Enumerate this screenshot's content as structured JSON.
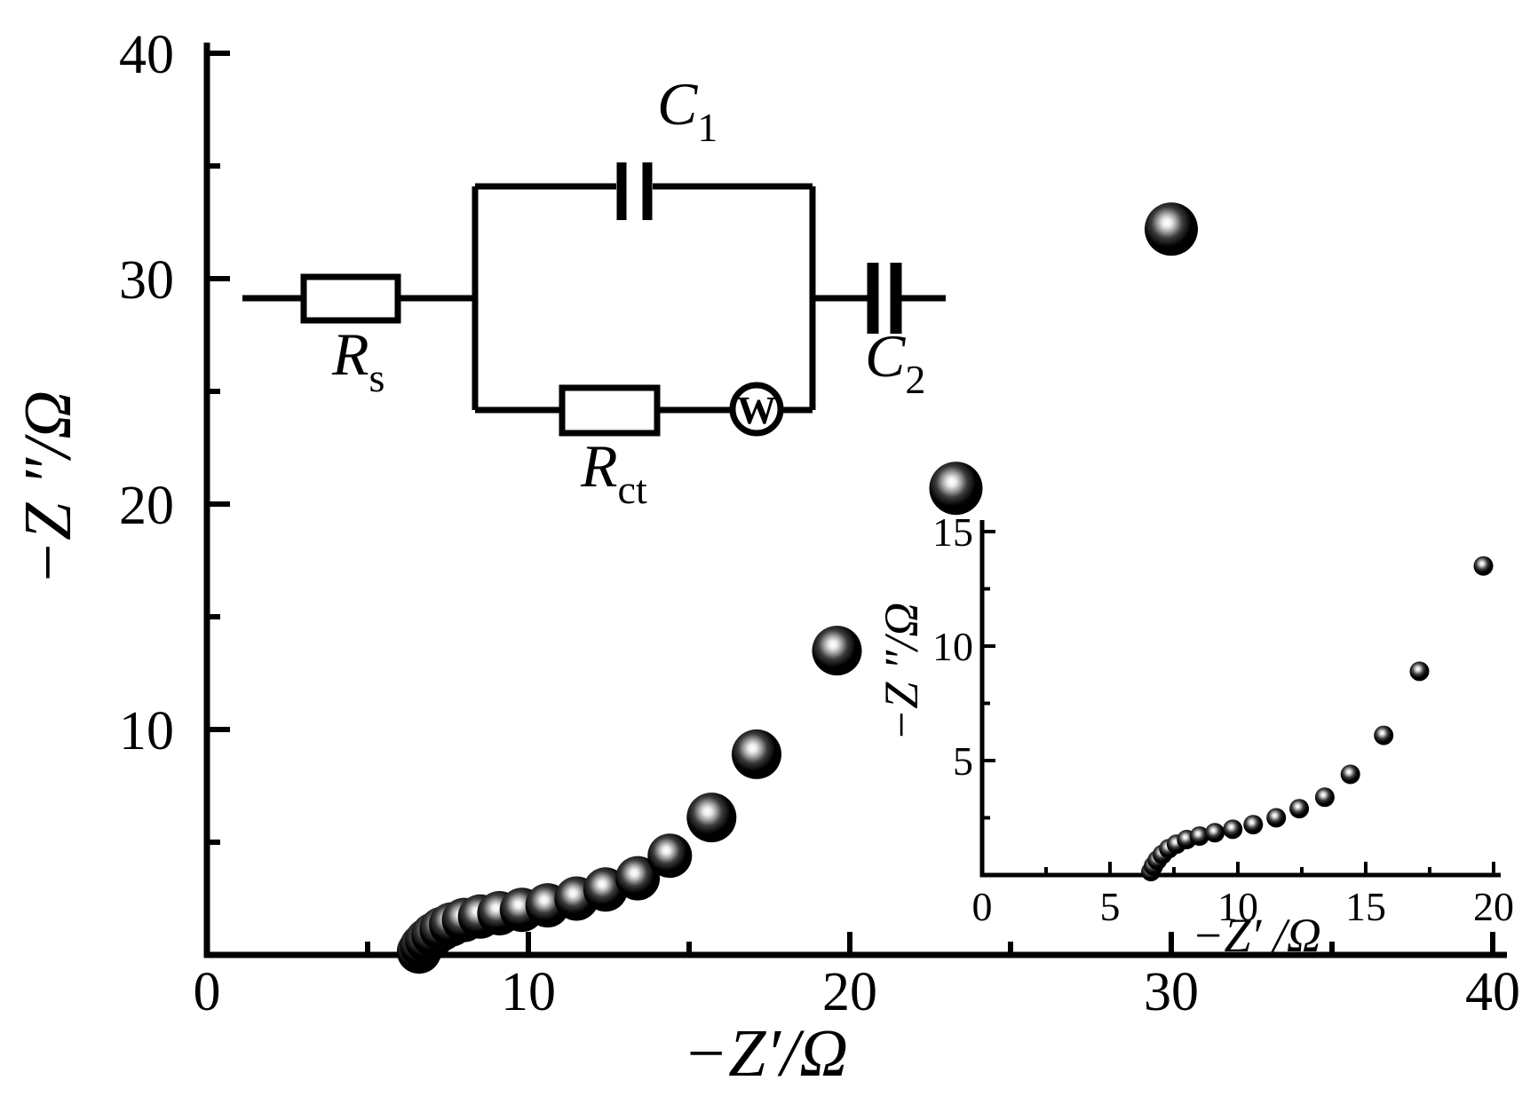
{
  "figure": {
    "description": "Nyquist plot of electrochemical impedance data with equivalent-circuit model and zoomed inset plot",
    "background": "#ffffff",
    "ink": "#000000"
  },
  "chart_data": {
    "type": "scatter",
    "title": "",
    "series": [
      {
        "name": "impedance-spectrum",
        "marker": "sphere-dot",
        "color": "#000000",
        "points": [
          [
            6.6,
            0.15
          ],
          [
            6.7,
            0.4
          ],
          [
            6.85,
            0.65
          ],
          [
            7.05,
            0.9
          ],
          [
            7.3,
            1.15
          ],
          [
            7.6,
            1.35
          ],
          [
            8.0,
            1.55
          ],
          [
            8.5,
            1.7
          ],
          [
            9.1,
            1.85
          ],
          [
            9.8,
            2.0
          ],
          [
            10.6,
            2.2
          ],
          [
            11.5,
            2.5
          ],
          [
            12.4,
            2.9
          ],
          [
            13.4,
            3.4
          ],
          [
            14.4,
            4.4
          ],
          [
            15.7,
            6.1
          ],
          [
            17.1,
            8.9
          ],
          [
            19.6,
            13.5
          ],
          [
            23.3,
            20.7
          ],
          [
            30.0,
            32.2
          ]
        ]
      }
    ],
    "main_axes": {
      "xlabel": "−Z′/Ω",
      "ylabel": "−Z ″/Ω",
      "xlim": [
        0,
        40
      ],
      "ylim": [
        0,
        40
      ],
      "xticks": [
        0,
        10,
        20,
        30,
        40
      ],
      "yticks": [
        10,
        20,
        30,
        40
      ],
      "x_minor_ticks": [
        5,
        15,
        25,
        35
      ],
      "y_minor_ticks": [
        5,
        15,
        25,
        35
      ],
      "grid": false,
      "legend": "none"
    },
    "inset_axes": {
      "xlabel": "−Z′ /Ω",
      "ylabel": "−Z ″/Ω",
      "xlim": [
        0,
        20
      ],
      "ylim": [
        0,
        15
      ],
      "xticks": [
        0,
        5,
        10,
        15,
        20
      ],
      "yticks": [
        5,
        10,
        15
      ],
      "x_minor_ticks": [
        2.5,
        7.5,
        12.5,
        17.5
      ],
      "y_minor_ticks": [
        2.5,
        7.5,
        12.5
      ],
      "grid": false,
      "legend": "none",
      "content": "zoom of impedance-spectrum points with x <= 20"
    }
  },
  "circuit": {
    "name": "equivalent-circuit",
    "elements": [
      {
        "id": "rs",
        "type": "resistor",
        "label": "R",
        "subscript": "s"
      },
      {
        "id": "c1",
        "type": "capacitor",
        "label": "C",
        "subscript": "1"
      },
      {
        "id": "rct",
        "type": "resistor",
        "label": "R",
        "subscript": "ct"
      },
      {
        "id": "w",
        "type": "warburg",
        "label": "W",
        "subscript": ""
      },
      {
        "id": "c2",
        "type": "capacitor",
        "label": "C",
        "subscript": "2"
      }
    ]
  }
}
